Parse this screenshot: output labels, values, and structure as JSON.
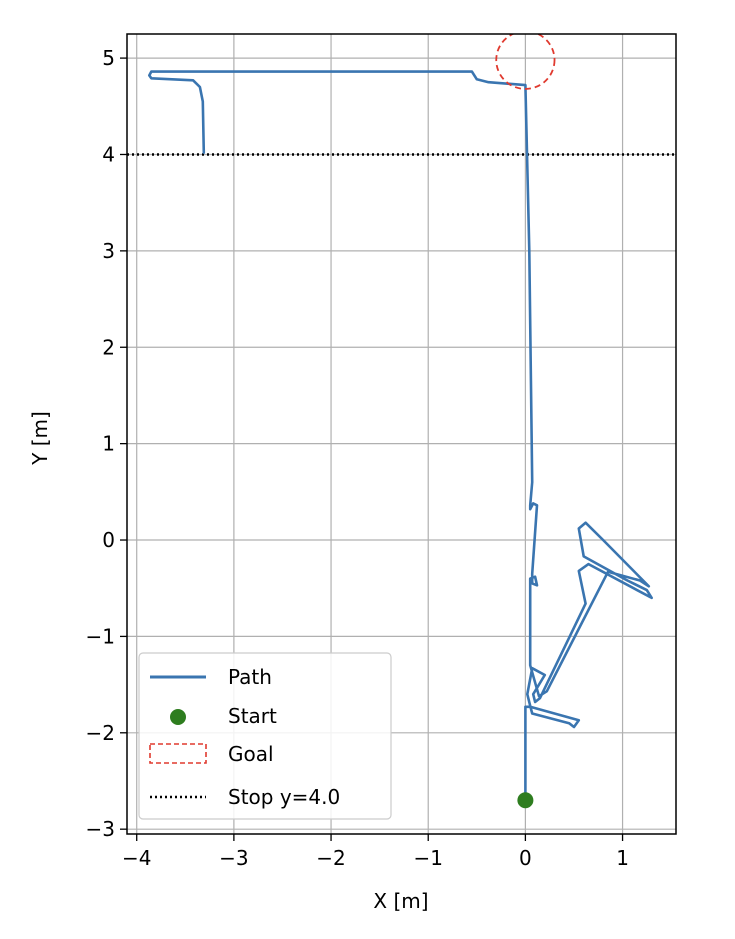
{
  "chart_data": {
    "type": "line",
    "xlabel": "X [m]",
    "ylabel": "Y [m]",
    "xlim": [
      -4.1,
      1.55
    ],
    "ylim": [
      -3.05,
      5.25
    ],
    "xticks": [
      -4,
      -3,
      -2,
      -1,
      0,
      1
    ],
    "yticks": [
      -3,
      -2,
      -1,
      0,
      1,
      2,
      3,
      4,
      5
    ],
    "xtick_labels": [
      "−4",
      "−3",
      "−2",
      "−1",
      "0",
      "1"
    ],
    "ytick_labels": [
      "−3",
      "−2",
      "−1",
      "0",
      "1",
      "2",
      "3",
      "4",
      "5"
    ],
    "grid": true,
    "legend_position": "lower-left",
    "series": [
      {
        "name": "Path",
        "kind": "line",
        "color": "#3a75b0",
        "points": [
          [
            0.0,
            -2.7
          ],
          [
            0.0,
            -1.73
          ],
          [
            0.05,
            -1.73
          ],
          [
            0.55,
            -1.87
          ],
          [
            0.5,
            -1.94
          ],
          [
            0.45,
            -1.9
          ],
          [
            0.07,
            -1.8
          ],
          [
            0.05,
            -1.72
          ],
          [
            0.02,
            -1.6
          ],
          [
            0.07,
            -1.33
          ],
          [
            0.2,
            -1.4
          ],
          [
            0.08,
            -1.6
          ],
          [
            0.1,
            -1.68
          ],
          [
            0.15,
            -1.64
          ],
          [
            0.62,
            -0.66
          ],
          [
            0.55,
            -0.32
          ],
          [
            0.65,
            -0.25
          ],
          [
            1.3,
            -0.6
          ],
          [
            1.25,
            -0.52
          ],
          [
            1.05,
            -0.42
          ],
          [
            0.6,
            -0.17
          ],
          [
            0.55,
            0.12
          ],
          [
            0.62,
            0.18
          ],
          [
            0.8,
            0.0
          ],
          [
            1.27,
            -0.48
          ],
          [
            1.18,
            -0.42
          ],
          [
            0.85,
            -0.33
          ],
          [
            0.22,
            -1.57
          ],
          [
            0.14,
            -1.62
          ],
          [
            0.05,
            -1.3
          ],
          [
            0.05,
            -0.4
          ],
          [
            0.1,
            -0.38
          ],
          [
            0.12,
            -0.47
          ],
          [
            0.07,
            -0.45
          ],
          [
            0.07,
            -0.35
          ],
          [
            0.12,
            0.36
          ],
          [
            0.08,
            0.38
          ],
          [
            0.05,
            0.32
          ],
          [
            0.05,
            0.36
          ],
          [
            0.07,
            0.6
          ],
          [
            0.04,
            3.0
          ],
          [
            0.0,
            4.72
          ],
          [
            -0.38,
            4.75
          ],
          [
            -0.5,
            4.78
          ],
          [
            -0.55,
            4.86
          ],
          [
            -3.85,
            4.86
          ],
          [
            -3.87,
            4.82
          ],
          [
            -3.85,
            4.79
          ],
          [
            -3.42,
            4.77
          ],
          [
            -3.35,
            4.7
          ],
          [
            -3.32,
            4.55
          ],
          [
            -3.31,
            4.02
          ]
        ]
      }
    ],
    "start": {
      "name": "Start",
      "x": 0.0,
      "y": -2.7,
      "color": "#2e7d1f"
    },
    "goal": {
      "name": "Goal",
      "x": 0.0,
      "y": 4.98,
      "radius": 0.3,
      "color": "#e03a2f"
    },
    "stop_line": {
      "name": "Stop y=4.0",
      "y": 4.0,
      "color": "#000000"
    }
  }
}
